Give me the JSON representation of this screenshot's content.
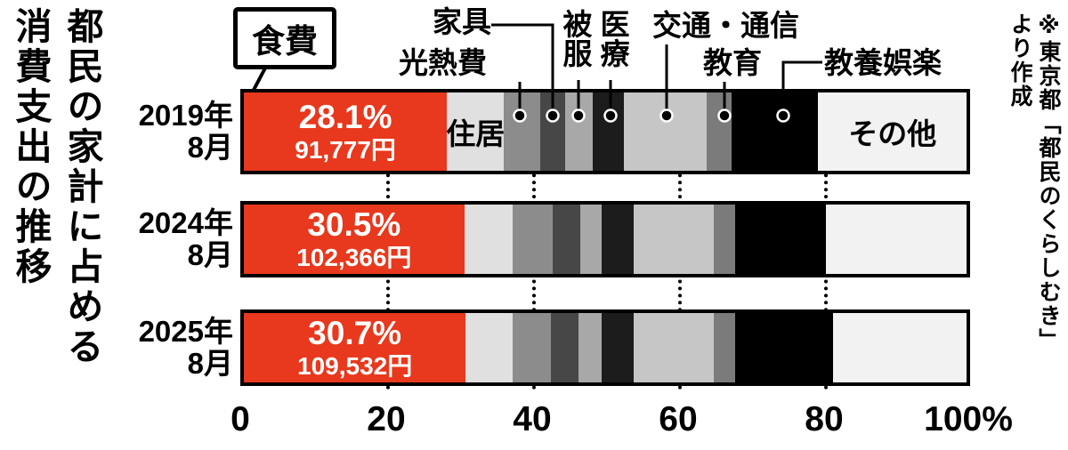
{
  "left_title": {
    "line1": "都民の家計に占める",
    "line2": "消費支出の推移"
  },
  "source_note": {
    "line1": "※東京都「都民のくらしむき」",
    "line2": "より作成"
  },
  "chart_data": {
    "type": "bar",
    "variant": "stacked-horizontal",
    "title": "都民の家計に占める消費支出の推移",
    "unit": "%",
    "xlim": [
      0,
      100
    ],
    "x_ticks": [
      "0",
      "20",
      "40",
      "60",
      "80",
      "100%"
    ],
    "grid": "dotted-vertical",
    "legend_position": "callout-labels-top",
    "categories": [
      "食費",
      "住居",
      "光熱費",
      "家具",
      "被服",
      "医療",
      "交通・通信",
      "教育",
      "教養娯楽",
      "その他"
    ],
    "category_colors": [
      "#e8381d",
      "#e0e0e0",
      "#8c8c8c",
      "#474747",
      "#a8a8a8",
      "#1c1c1c",
      "#c6c6c6",
      "#7b7b7b",
      "#000000",
      "#f2f2f2"
    ],
    "inline_labels": {
      "housing": "住居",
      "other": "その他"
    },
    "rows": [
      {
        "period_line1": "2019年",
        "period_line2": "8月",
        "food_share_label": "28.1%",
        "food_amount_label": "91,777円",
        "values": [
          28.1,
          7.9,
          5.0,
          3.5,
          3.8,
          4.3,
          11.5,
          3.4,
          12.0,
          20.5
        ]
      },
      {
        "period_line1": "2024年",
        "period_line2": "8月",
        "food_share_label": "30.5%",
        "food_amount_label": "102,366円",
        "values": [
          30.5,
          6.7,
          5.5,
          3.8,
          3.0,
          4.5,
          11.0,
          3.0,
          12.5,
          19.5
        ]
      },
      {
        "period_line1": "2025年",
        "period_line2": "8月",
        "food_share_label": "30.7%",
        "food_amount_label": "109,532円",
        "values": [
          30.7,
          6.5,
          5.3,
          3.8,
          3.2,
          4.5,
          11.0,
          3.0,
          13.5,
          18.5
        ]
      }
    ]
  }
}
